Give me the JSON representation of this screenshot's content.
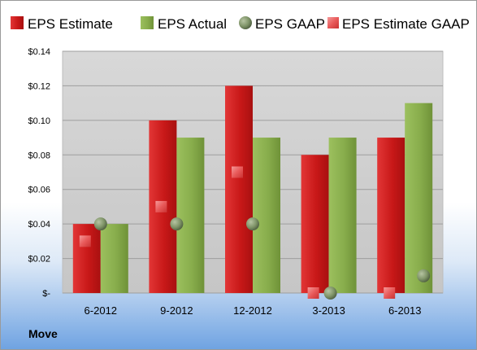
{
  "company": "Move",
  "colors": {
    "estimate": "#cc1e1e",
    "actual": "#8ab04e",
    "gaap": "#7f9468",
    "estimate_gaap": "#ee6b6b",
    "plot_bg": "#cfcfcf"
  },
  "chart_data": {
    "type": "bar",
    "title": "",
    "xlabel": "",
    "ylabel": "",
    "categories": [
      "6-2012",
      "9-2012",
      "12-2012",
      "3-2013",
      "6-2013"
    ],
    "ylim": [
      0,
      0.14
    ],
    "yticks": [
      0,
      0.02,
      0.04,
      0.06,
      0.08,
      0.1,
      0.12,
      0.14
    ],
    "ytick_labels": [
      "$-",
      "$0.02",
      "$0.04",
      "$0.06",
      "$0.08",
      "$0.10",
      "$0.12",
      "$0.14"
    ],
    "grid": true,
    "legend_position": "top",
    "series": [
      {
        "name": "EPS Estimate",
        "kind": "bar",
        "values": [
          0.04,
          0.1,
          0.12,
          0.08,
          0.09
        ]
      },
      {
        "name": "EPS Actual",
        "kind": "bar",
        "values": [
          0.04,
          0.09,
          0.09,
          0.09,
          0.11
        ]
      },
      {
        "name": "EPS GAAP",
        "kind": "circle-marker",
        "values": [
          0.04,
          0.04,
          0.04,
          0.0,
          0.01
        ]
      },
      {
        "name": "EPS Estimate GAAP",
        "kind": "square-marker",
        "values": [
          0.03,
          0.05,
          0.07,
          0.0,
          0.0
        ]
      }
    ]
  }
}
